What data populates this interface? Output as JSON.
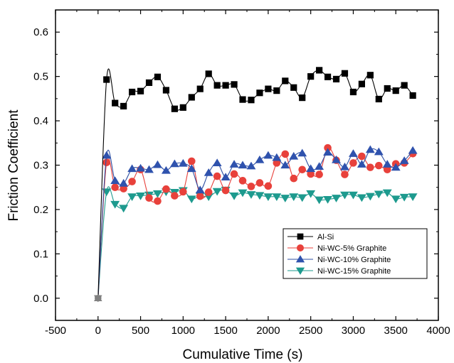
{
  "chart_data": {
    "type": "line",
    "xlabel": "Cumulative Time (s)",
    "ylabel": "Friction Coefficient",
    "xlim": [
      -500,
      4000
    ],
    "ylim": [
      -0.05,
      0.65
    ],
    "xticks": [
      -500,
      0,
      500,
      1000,
      1500,
      2000,
      2500,
      3000,
      3500,
      4000
    ],
    "yticks": [
      0.0,
      0.1,
      0.2,
      0.3,
      0.4,
      0.5,
      0.6
    ],
    "xtick_labels": [
      "-500",
      "0",
      "500",
      "1000",
      "1500",
      "2000",
      "2500",
      "3000",
      "3500",
      "4000"
    ],
    "ytick_labels": [
      "0.0",
      "0.1",
      "0.2",
      "0.3",
      "0.4",
      "0.5",
      "0.6"
    ],
    "grid": false,
    "legend_position": "bottom-right",
    "x": [
      0,
      100,
      200,
      300,
      400,
      500,
      600,
      700,
      800,
      900,
      1000,
      1100,
      1200,
      1300,
      1400,
      1500,
      1600,
      1700,
      1800,
      1900,
      2000,
      2100,
      2200,
      2300,
      2400,
      2500,
      2600,
      2700,
      2800,
      2900,
      3000,
      3100,
      3200,
      3300,
      3400,
      3500,
      3600,
      3700
    ],
    "series": [
      {
        "name": "Al-Si",
        "marker": "square",
        "color": "#000000",
        "marker_color": "#000000",
        "values": [
          0.0,
          0.493,
          0.44,
          0.433,
          0.465,
          0.467,
          0.486,
          0.499,
          0.469,
          0.427,
          0.43,
          0.453,
          0.472,
          0.506,
          0.48,
          0.48,
          0.482,
          0.448,
          0.447,
          0.463,
          0.472,
          0.468,
          0.49,
          0.475,
          0.452,
          0.5,
          0.514,
          0.499,
          0.494,
          0.507,
          0.465,
          0.483,
          0.503,
          0.449,
          0.473,
          0.468,
          0.48,
          0.457
        ]
      },
      {
        "name": "Ni-WC-5% Graphite",
        "marker": "circle",
        "color": "#e8413b",
        "marker_color": "#e8413b",
        "values": [
          0.0,
          0.306,
          0.25,
          0.247,
          0.263,
          0.29,
          0.226,
          0.219,
          0.246,
          0.231,
          0.24,
          0.309,
          0.23,
          0.239,
          0.275,
          0.243,
          0.28,
          0.265,
          0.252,
          0.26,
          0.253,
          0.305,
          0.325,
          0.27,
          0.29,
          0.28,
          0.279,
          0.339,
          0.311,
          0.279,
          0.305,
          0.32,
          0.295,
          0.299,
          0.29,
          0.303,
          0.305,
          0.326
        ]
      },
      {
        "name": "Ni-WC-10% Graphite",
        "marker": "triangle-up",
        "color": "#2e4fa3",
        "marker_color": "#2f52ad",
        "values": [
          0.0,
          0.322,
          0.265,
          0.259,
          0.292,
          0.293,
          0.29,
          0.301,
          0.288,
          0.303,
          0.304,
          0.292,
          0.244,
          0.283,
          0.305,
          0.273,
          0.302,
          0.3,
          0.298,
          0.312,
          0.322,
          0.317,
          0.3,
          0.32,
          0.327,
          0.292,
          0.297,
          0.329,
          0.312,
          0.296,
          0.326,
          0.302,
          0.335,
          0.33,
          0.302,
          0.295,
          0.31,
          0.333
        ]
      },
      {
        "name": "Ni-WC-15% Graphite",
        "marker": "triangle-down",
        "color": "#1d9a8e",
        "marker_color": "#1d9a8e",
        "values": [
          0.0,
          0.24,
          0.212,
          0.203,
          0.229,
          0.231,
          0.233,
          0.236,
          0.24,
          0.239,
          0.243,
          0.224,
          0.231,
          0.229,
          0.241,
          0.244,
          0.231,
          0.238,
          0.234,
          0.232,
          0.229,
          0.229,
          0.226,
          0.229,
          0.227,
          0.236,
          0.222,
          0.223,
          0.226,
          0.233,
          0.233,
          0.227,
          0.23,
          0.235,
          0.238,
          0.224,
          0.228,
          0.229
        ]
      }
    ]
  }
}
